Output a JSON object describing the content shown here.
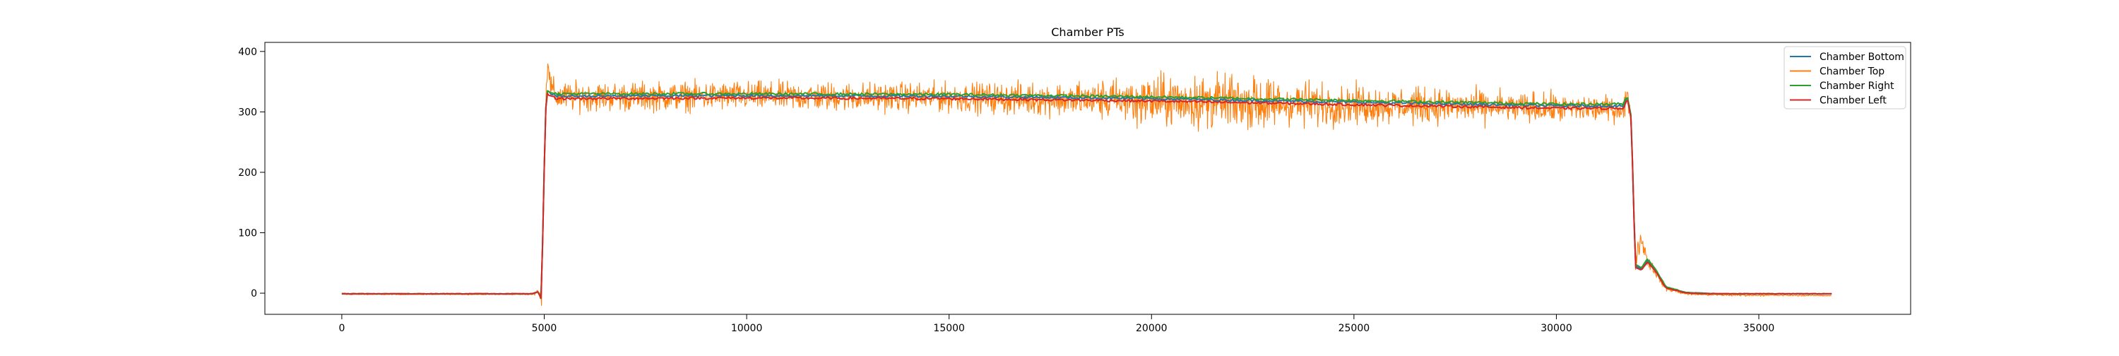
{
  "chart_data": {
    "type": "line",
    "title": "Chamber PTs",
    "xlabel": "",
    "ylabel": "",
    "xlim": [
      -1900,
      38750
    ],
    "ylim": [
      -35,
      415
    ],
    "xticks": [
      0,
      5000,
      10000,
      15000,
      20000,
      25000,
      30000,
      35000
    ],
    "yticks": [
      0,
      100,
      200,
      300,
      400
    ],
    "grid": false,
    "legend": {
      "placement": "top-right",
      "entries": [
        "Chamber Bottom",
        "Chamber Top",
        "Chamber Right",
        "Chamber Left"
      ]
    },
    "series": [
      {
        "name": "Chamber Bottom",
        "color": "#1f77b4",
        "points": [
          [
            0,
            -1
          ],
          [
            4700,
            -1
          ],
          [
            4850,
            2
          ],
          [
            4930,
            -10
          ],
          [
            5030,
            300
          ],
          [
            5080,
            335
          ],
          [
            5300,
            326
          ],
          [
            10000,
            327
          ],
          [
            15000,
            326
          ],
          [
            20000,
            322
          ],
          [
            25000,
            316
          ],
          [
            30000,
            310
          ],
          [
            31650,
            310
          ],
          [
            31750,
            325
          ],
          [
            31850,
            290
          ],
          [
            31950,
            45
          ],
          [
            32100,
            40
          ],
          [
            32250,
            55
          ],
          [
            32450,
            38
          ],
          [
            32700,
            10
          ],
          [
            33200,
            1
          ],
          [
            34000,
            -1
          ],
          [
            36800,
            -1
          ]
        ]
      },
      {
        "name": "Chamber Top",
        "color": "#ff7f0e",
        "points": [
          [
            0,
            -2
          ],
          [
            4700,
            -2
          ],
          [
            4850,
            2
          ],
          [
            4930,
            -10
          ],
          [
            5030,
            300
          ],
          [
            5090,
            395
          ],
          [
            5150,
            340
          ],
          [
            5300,
            325
          ],
          [
            10000,
            326
          ],
          [
            15000,
            324
          ],
          [
            20000,
            318
          ],
          [
            25000,
            312
          ],
          [
            30000,
            306
          ],
          [
            31650,
            305
          ],
          [
            31750,
            325
          ],
          [
            31850,
            290
          ],
          [
            31950,
            60
          ],
          [
            32100,
            90
          ],
          [
            32250,
            55
          ],
          [
            32450,
            35
          ],
          [
            32700,
            8
          ],
          [
            33200,
            -1
          ],
          [
            34000,
            -3
          ],
          [
            36800,
            -4
          ]
        ],
        "noise_amplitude": [
          [
            0,
            1
          ],
          [
            4700,
            1
          ],
          [
            5100,
            30
          ],
          [
            10000,
            30
          ],
          [
            15000,
            30
          ],
          [
            18000,
            35
          ],
          [
            20000,
            55
          ],
          [
            22000,
            55
          ],
          [
            25000,
            40
          ],
          [
            30000,
            30
          ],
          [
            31650,
            25
          ],
          [
            31900,
            25
          ],
          [
            32400,
            10
          ],
          [
            33000,
            3
          ],
          [
            36800,
            1
          ]
        ]
      },
      {
        "name": "Chamber Right",
        "color": "#2ca02c",
        "points": [
          [
            0,
            -1
          ],
          [
            4700,
            -1
          ],
          [
            4850,
            2
          ],
          [
            4930,
            -10
          ],
          [
            5030,
            300
          ],
          [
            5080,
            335
          ],
          [
            5300,
            330
          ],
          [
            10000,
            330
          ],
          [
            15000,
            329
          ],
          [
            20000,
            325
          ],
          [
            25000,
            319
          ],
          [
            30000,
            313
          ],
          [
            31650,
            313
          ],
          [
            31750,
            327
          ],
          [
            31850,
            292
          ],
          [
            31950,
            48
          ],
          [
            32100,
            42
          ],
          [
            32250,
            57
          ],
          [
            32450,
            40
          ],
          [
            32700,
            11
          ],
          [
            33200,
            1
          ],
          [
            34000,
            -1
          ],
          [
            36800,
            -1
          ]
        ]
      },
      {
        "name": "Chamber Left",
        "color": "#d62728",
        "points": [
          [
            0,
            -1
          ],
          [
            4700,
            -1
          ],
          [
            4850,
            2
          ],
          [
            4930,
            -10
          ],
          [
            5030,
            300
          ],
          [
            5080,
            330
          ],
          [
            5300,
            322
          ],
          [
            10000,
            323
          ],
          [
            15000,
            322
          ],
          [
            20000,
            318
          ],
          [
            25000,
            312
          ],
          [
            30000,
            306
          ],
          [
            31650,
            306
          ],
          [
            31750,
            322
          ],
          [
            31850,
            288
          ],
          [
            31950,
            42
          ],
          [
            32100,
            38
          ],
          [
            32250,
            52
          ],
          [
            32450,
            36
          ],
          [
            32700,
            9
          ],
          [
            33200,
            0
          ],
          [
            34000,
            -1
          ],
          [
            36800,
            -1
          ]
        ]
      }
    ]
  }
}
